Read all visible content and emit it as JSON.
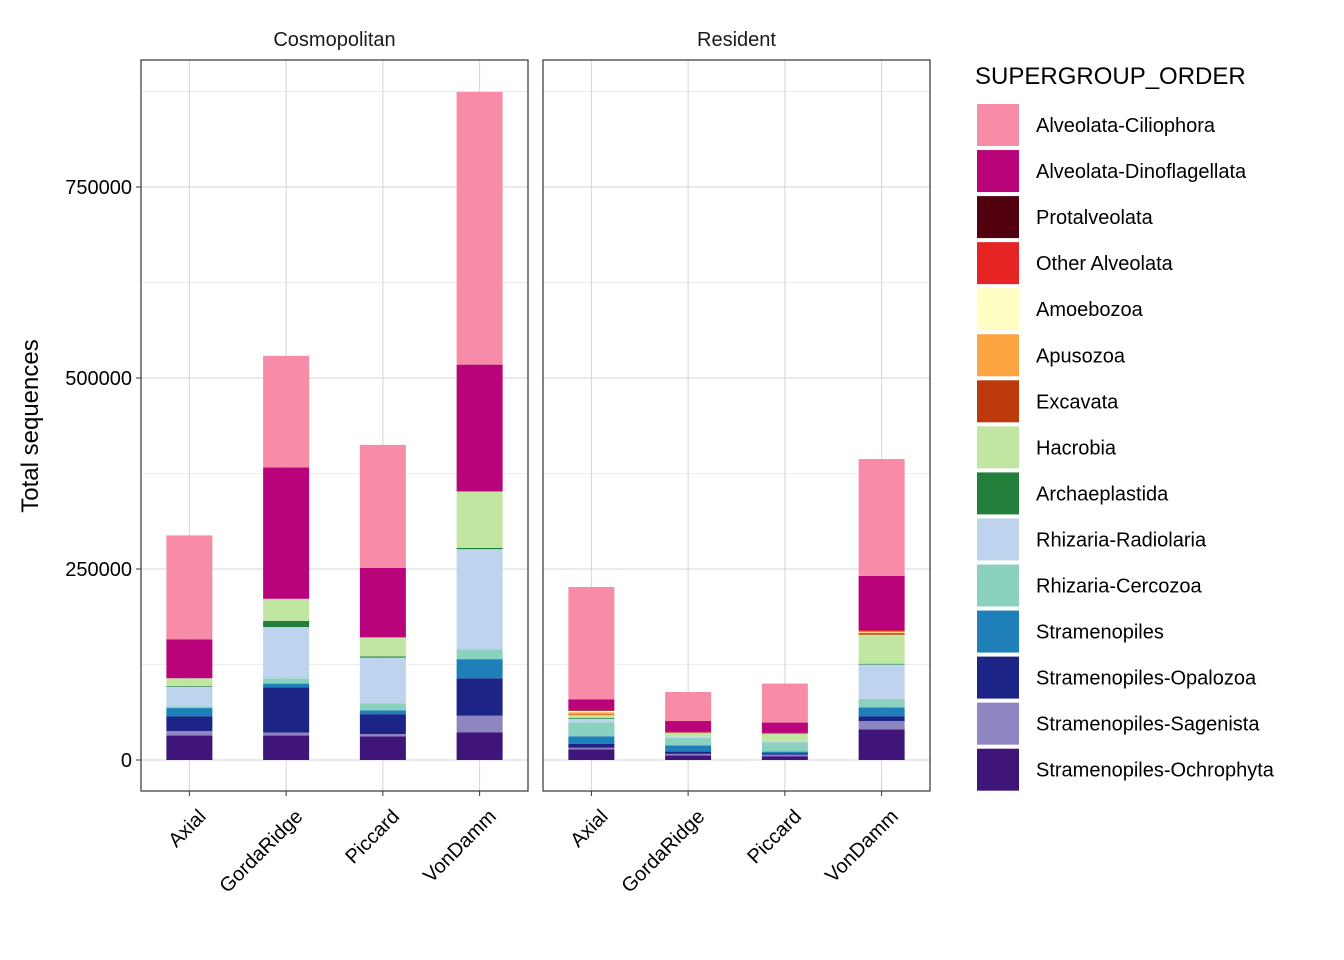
{
  "chart_data": {
    "type": "bar",
    "stacked": true,
    "ylabel": "Total sequences",
    "xlabel": "",
    "ylim": [
      -40000,
      915000
    ],
    "yticks": [
      0,
      250000,
      500000,
      750000
    ],
    "ytick_labels": [
      "0",
      "250000",
      "500000",
      "750000"
    ],
    "grid": true,
    "categories": [
      "Axial",
      "GordaRidge",
      "Piccard",
      "VonDamm"
    ],
    "legend": {
      "title": "SUPERGROUP_ORDER",
      "position": "right",
      "items": [
        {
          "name": "Alveolata-Ciliophora",
          "color": "#F68CA8"
        },
        {
          "name": "Alveolata-Dinoflagellata",
          "color": "#B8037A"
        },
        {
          "name": "Protalveolata",
          "color": "#520010"
        },
        {
          "name": "Other Alveolata",
          "color": "#E62424"
        },
        {
          "name": "Amoebozoa",
          "color": "#FFFFC4"
        },
        {
          "name": "Apusozoa",
          "color": "#FDA542"
        },
        {
          "name": "Excavata",
          "color": "#BD380A"
        },
        {
          "name": "Hacrobia",
          "color": "#C0E6A2"
        },
        {
          "name": "Archaeplastida",
          "color": "#22803A"
        },
        {
          "name": "Rhizaria-Radiolaria",
          "color": "#BED3EE"
        },
        {
          "name": "Rhizaria-Cercozoa",
          "color": "#8AD1BF"
        },
        {
          "name": "Stramenopiles",
          "color": "#1F7FB9"
        },
        {
          "name": "Stramenopiles-Opalozoa",
          "color": "#1C2485"
        },
        {
          "name": "Stramenopiles-Sagenista",
          "color": "#8F85C2"
        },
        {
          "name": "Stramenopiles-Ochrophyta",
          "color": "#40157A"
        }
      ]
    },
    "panels": [
      {
        "title": "Cosmopolitan",
        "bars": [
          {
            "category": "Axial",
            "segments": [
              {
                "group": "Stramenopiles-Ochrophyta",
                "value": 32000
              },
              {
                "group": "Stramenopiles-Sagenista",
                "value": 6000
              },
              {
                "group": "Stramenopiles-Opalozoa",
                "value": 19000
              },
              {
                "group": "Stramenopiles",
                "value": 11000
              },
              {
                "group": "Rhizaria-Cercozoa",
                "value": 2000
              },
              {
                "group": "Rhizaria-Radiolaria",
                "value": 26000
              },
              {
                "group": "Archaeplastida",
                "value": 1000
              },
              {
                "group": "Hacrobia",
                "value": 10000
              },
              {
                "group": "Alveolata-Dinoflagellata",
                "value": 51000
              },
              {
                "group": "Alveolata-Ciliophora",
                "value": 136000
              }
            ]
          },
          {
            "category": "GordaRidge",
            "segments": [
              {
                "group": "Stramenopiles-Ochrophyta",
                "value": 32000
              },
              {
                "group": "Stramenopiles-Sagenista",
                "value": 4000
              },
              {
                "group": "Stramenopiles-Opalozoa",
                "value": 59000
              },
              {
                "group": "Stramenopiles",
                "value": 5000
              },
              {
                "group": "Rhizaria-Cercozoa",
                "value": 7000
              },
              {
                "group": "Rhizaria-Radiolaria",
                "value": 67000
              },
              {
                "group": "Archaeplastida",
                "value": 8000
              },
              {
                "group": "Hacrobia",
                "value": 29000
              },
              {
                "group": "Alveolata-Dinoflagellata",
                "value": 172000
              },
              {
                "group": "Alveolata-Ciliophora",
                "value": 146000
              }
            ]
          },
          {
            "category": "Piccard",
            "segments": [
              {
                "group": "Stramenopiles-Ochrophyta",
                "value": 31000
              },
              {
                "group": "Stramenopiles-Sagenista",
                "value": 3000
              },
              {
                "group": "Stramenopiles-Opalozoa",
                "value": 26000
              },
              {
                "group": "Stramenopiles",
                "value": 5000
              },
              {
                "group": "Rhizaria-Cercozoa",
                "value": 9000
              },
              {
                "group": "Rhizaria-Radiolaria",
                "value": 60000
              },
              {
                "group": "Archaeplastida",
                "value": 1500
              },
              {
                "group": "Hacrobia",
                "value": 25000
              },
              {
                "group": "Alveolata-Dinoflagellata",
                "value": 91000
              },
              {
                "group": "Alveolata-Ciliophora",
                "value": 161000
              }
            ]
          },
          {
            "category": "VonDamm",
            "segments": [
              {
                "group": "Stramenopiles-Ochrophyta",
                "value": 36000
              },
              {
                "group": "Stramenopiles-Sagenista",
                "value": 22000
              },
              {
                "group": "Stramenopiles-Opalozoa",
                "value": 49000
              },
              {
                "group": "Stramenopiles",
                "value": 25000
              },
              {
                "group": "Rhizaria-Cercozoa",
                "value": 13000
              },
              {
                "group": "Rhizaria-Radiolaria",
                "value": 131000
              },
              {
                "group": "Archaeplastida",
                "value": 1500
              },
              {
                "group": "Hacrobia",
                "value": 74000
              },
              {
                "group": "Alveolata-Dinoflagellata",
                "value": 166000
              },
              {
                "group": "Alveolata-Ciliophora",
                "value": 357000
              }
            ]
          }
        ]
      },
      {
        "title": "Resident",
        "bars": [
          {
            "category": "Axial",
            "segments": [
              {
                "group": "Stramenopiles-Ochrophyta",
                "value": 14000
              },
              {
                "group": "Stramenopiles-Sagenista",
                "value": 2000
              },
              {
                "group": "Stramenopiles-Opalozoa",
                "value": 5000
              },
              {
                "group": "Stramenopiles",
                "value": 10000
              },
              {
                "group": "Rhizaria-Cercozoa",
                "value": 18000
              },
              {
                "group": "Rhizaria-Radiolaria",
                "value": 5000
              },
              {
                "group": "Archaeplastida",
                "value": 1000
              },
              {
                "group": "Hacrobia",
                "value": 4000
              },
              {
                "group": "Excavata",
                "value": 500
              },
              {
                "group": "Apusozoa",
                "value": 3000
              },
              {
                "group": "Amoebozoa",
                "value": 2000
              },
              {
                "group": "Other Alveolata",
                "value": 500
              },
              {
                "group": "Protalveolata",
                "value": 500
              },
              {
                "group": "Alveolata-Dinoflagellata",
                "value": 14000
              },
              {
                "group": "Alveolata-Ciliophora",
                "value": 147000
              }
            ]
          },
          {
            "category": "GordaRidge",
            "segments": [
              {
                "group": "Stramenopiles-Ochrophyta",
                "value": 6000
              },
              {
                "group": "Stramenopiles-Sagenista",
                "value": 2000
              },
              {
                "group": "Stramenopiles-Opalozoa",
                "value": 3000
              },
              {
                "group": "Stramenopiles",
                "value": 8000
              },
              {
                "group": "Rhizaria-Cercozoa",
                "value": 10000
              },
              {
                "group": "Rhizaria-Radiolaria",
                "value": 2000
              },
              {
                "group": "Hacrobia",
                "value": 5000
              },
              {
                "group": "Other Alveolata",
                "value": 500
              },
              {
                "group": "Protalveolata",
                "value": 500
              },
              {
                "group": "Alveolata-Dinoflagellata",
                "value": 14000
              },
              {
                "group": "Alveolata-Ciliophora",
                "value": 38000
              }
            ]
          },
          {
            "category": "Piccard",
            "segments": [
              {
                "group": "Stramenopiles-Ochrophyta",
                "value": 5000
              },
              {
                "group": "Stramenopiles-Sagenista",
                "value": 2000
              },
              {
                "group": "Stramenopiles-Opalozoa",
                "value": 2000
              },
              {
                "group": "Stramenopiles",
                "value": 2000
              },
              {
                "group": "Rhizaria-Cercozoa",
                "value": 12000
              },
              {
                "group": "Rhizaria-Radiolaria",
                "value": 2000
              },
              {
                "group": "Hacrobia",
                "value": 10000
              },
              {
                "group": "Protalveolata",
                "value": 500
              },
              {
                "group": "Alveolata-Dinoflagellata",
                "value": 13500
              },
              {
                "group": "Alveolata-Ciliophora",
                "value": 51000
              }
            ]
          },
          {
            "category": "VonDamm",
            "segments": [
              {
                "group": "Stramenopiles-Ochrophyta",
                "value": 40000
              },
              {
                "group": "Stramenopiles-Sagenista",
                "value": 11000
              },
              {
                "group": "Stramenopiles-Opalozoa",
                "value": 6000
              },
              {
                "group": "Stramenopiles",
                "value": 12000
              },
              {
                "group": "Rhizaria-Cercozoa",
                "value": 11000
              },
              {
                "group": "Rhizaria-Radiolaria",
                "value": 45000
              },
              {
                "group": "Archaeplastida",
                "value": 1000
              },
              {
                "group": "Hacrobia",
                "value": 38000
              },
              {
                "group": "Excavata",
                "value": 2000
              },
              {
                "group": "Apusozoa",
                "value": 1000
              },
              {
                "group": "Amoebozoa",
                "value": 1000
              },
              {
                "group": "Other Alveolata",
                "value": 2000
              },
              {
                "group": "Protalveolata",
                "value": 1000
              },
              {
                "group": "Alveolata-Dinoflagellata",
                "value": 70000
              },
              {
                "group": "Alveolata-Ciliophora",
                "value": 153000
              }
            ]
          }
        ]
      }
    ]
  }
}
